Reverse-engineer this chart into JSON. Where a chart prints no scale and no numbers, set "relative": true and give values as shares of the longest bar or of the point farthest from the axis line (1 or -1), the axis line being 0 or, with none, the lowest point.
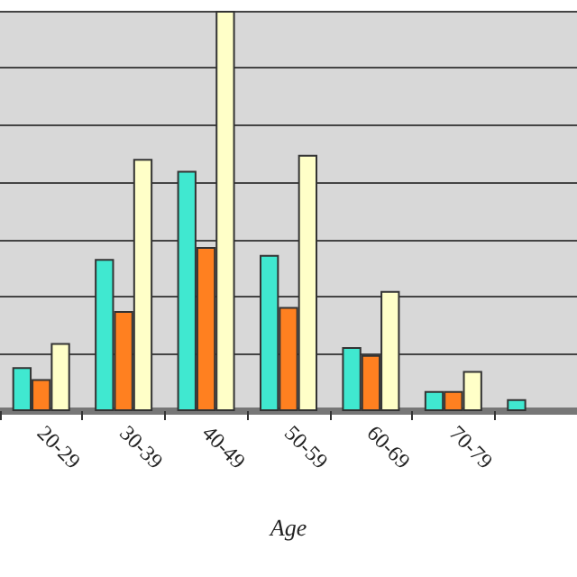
{
  "chart_data": {
    "type": "bar",
    "relative": true,
    "xlabel": "Age",
    "categories": [
      "20-29",
      "30-39",
      "40-49",
      "50-59",
      "60-69",
      "70-79",
      null
    ],
    "series": [
      {
        "color": "#40e8d0",
        "values": [
          0.11,
          0.38,
          0.6,
          0.39,
          0.16,
          0.05,
          0.03
        ]
      },
      {
        "color": "#ff8020",
        "values": [
          0.08,
          0.25,
          0.41,
          0.26,
          0.14,
          0.05,
          null
        ]
      },
      {
        "color": "#ffffc8",
        "values": [
          0.17,
          0.63,
          1.0,
          0.64,
          0.3,
          0.1,
          null
        ]
      }
    ],
    "grid": "y"
  }
}
